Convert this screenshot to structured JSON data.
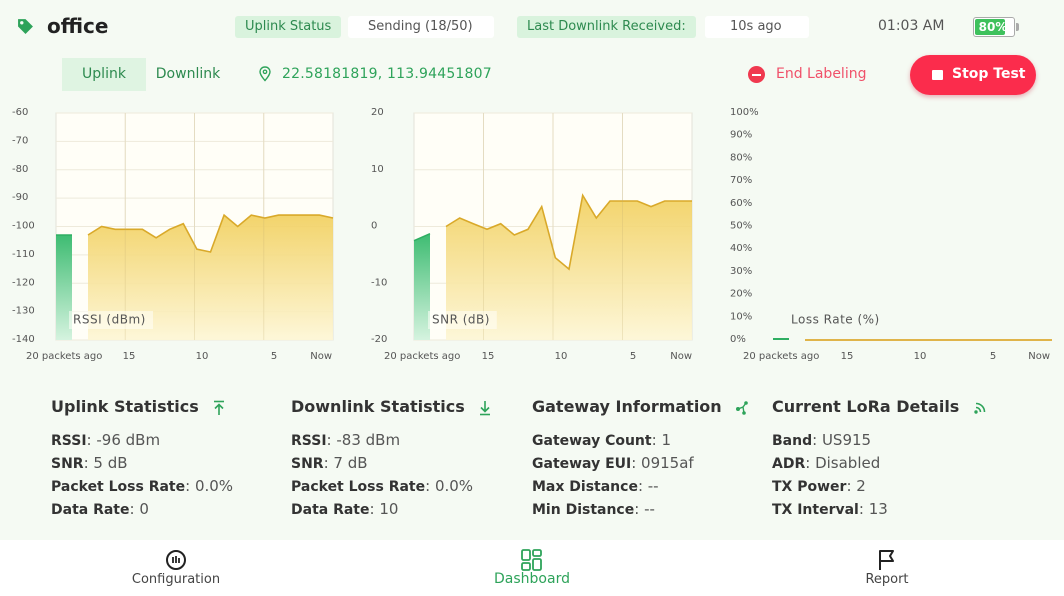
{
  "header": {
    "site_name": "office",
    "uplink_status_label": "Uplink Status",
    "uplink_status_value": "Sending (18/50)",
    "last_downlink_label": "Last Downlink Received:",
    "last_downlink_value": "10s ago",
    "clock": "01:03 AM",
    "battery_percent": 80,
    "battery_label": "80%",
    "tag_icon": "tag-icon"
  },
  "toolbar": {
    "tabs": [
      {
        "label": "Uplink",
        "active": true
      },
      {
        "label": "Downlink",
        "active": false
      }
    ],
    "pin_icon": "location-pin-icon",
    "coordinates": "22.58181819, 113.94451807",
    "end_labeling": "End Labeling",
    "stop_test": "Stop Test"
  },
  "colors": {
    "accent_green": "#2ea35a",
    "stop_red": "#fb2c4c",
    "series_fill": "#f3d77a",
    "series_line": "#d9a92a",
    "current_bar": "#3ec17a"
  },
  "chart_data": [
    {
      "type": "area",
      "label": "RSSI (dBm)",
      "ylim": [
        -140,
        -60
      ],
      "yticks": [
        "-60",
        "-70",
        "-80",
        "-90",
        "-100",
        "-110",
        "-120",
        "-130",
        "-140"
      ],
      "xticks": [
        "20 packets ago",
        "15",
        "10",
        "5",
        "Now"
      ],
      "x": [
        -18,
        -17,
        -16,
        -15,
        -14,
        -13,
        -12,
        -11,
        -10,
        -9,
        -8,
        -7,
        -6,
        -5,
        -4,
        -3,
        -2,
        -1,
        0
      ],
      "values": [
        -103,
        -100,
        -101,
        -101,
        -101,
        -104,
        -101,
        -99,
        -108,
        -109,
        -96,
        -100,
        -96,
        -97,
        -96,
        -96,
        -96,
        -96,
        -97
      ],
      "current_value": -103,
      "grid": true
    },
    {
      "type": "area",
      "label": "SNR (dB)",
      "ylim": [
        -20,
        20
      ],
      "yticks": [
        "20",
        "10",
        "0",
        "-10",
        "-20"
      ],
      "xticks": [
        "20 packets ago",
        "15",
        "10",
        "5",
        "Now"
      ],
      "x": [
        -18,
        -17,
        -16,
        -15,
        -14,
        -13,
        -12,
        -11,
        -10,
        -9,
        -8,
        -7,
        -6,
        -5,
        -4,
        -3,
        -2,
        -1,
        0
      ],
      "values": [
        0,
        1.5,
        0.5,
        -0.5,
        0.5,
        -1.5,
        -0.5,
        3.5,
        -5.5,
        -7.5,
        5.5,
        1.5,
        4.5,
        4.5,
        4.5,
        3.5,
        4.5,
        4.5,
        4.5
      ],
      "current_value": -2.5,
      "grid": true
    },
    {
      "type": "line",
      "label": "Loss Rate (%)",
      "ylim": [
        0,
        100
      ],
      "yticks": [
        "100%",
        "90%",
        "80%",
        "70%",
        "60%",
        "50%",
        "40%",
        "30%",
        "20%",
        "10%",
        "0%"
      ],
      "xticks": [
        "20 packets ago",
        "15",
        "10",
        "5",
        "Now"
      ],
      "x": [
        -18,
        -17,
        -16,
        -15,
        -14,
        -13,
        -12,
        -11,
        -10,
        -9,
        -8,
        -7,
        -6,
        -5,
        -4,
        -3,
        -2,
        -1,
        0
      ],
      "values": [
        0,
        0,
        0,
        0,
        0,
        0,
        0,
        0,
        0,
        0,
        0,
        0,
        0,
        0,
        0,
        0,
        0,
        0,
        0
      ],
      "current_value": 0,
      "grid": true
    }
  ],
  "stats": [
    {
      "title": "Uplink Statistics",
      "icon": "upload-arrow-icon",
      "rows": [
        {
          "key": "RSSI",
          "value": "-96 dBm"
        },
        {
          "key": "SNR",
          "value": "5 dB"
        },
        {
          "key": "Packet Loss Rate",
          "value": "0.0%"
        },
        {
          "key": "Data Rate",
          "value": "0"
        }
      ]
    },
    {
      "title": "Downlink Statistics",
      "icon": "download-arrow-icon",
      "rows": [
        {
          "key": "RSSI",
          "value": "-83 dBm"
        },
        {
          "key": "SNR",
          "value": "7 dB"
        },
        {
          "key": "Packet Loss Rate",
          "value": "0.0%"
        },
        {
          "key": "Data Rate",
          "value": "10"
        }
      ]
    },
    {
      "title": "Gateway Information",
      "icon": "network-nodes-icon",
      "rows": [
        {
          "key": "Gateway Count",
          "value": "1"
        },
        {
          "key": "Gateway EUI",
          "value": "0915af"
        },
        {
          "key": "Max Distance",
          "value": "--"
        },
        {
          "key": "Min Distance",
          "value": "--"
        }
      ]
    },
    {
      "title": "Current LoRa Details",
      "icon": "wireless-signal-icon",
      "rows": [
        {
          "key": "Band",
          "value": "US915"
        },
        {
          "key": "ADR",
          "value": "Disabled"
        },
        {
          "key": "TX Power",
          "value": "2"
        },
        {
          "key": "TX Interval",
          "value": "13"
        }
      ]
    }
  ],
  "bottom_nav": [
    {
      "label": "Configuration",
      "icon": "gauge-icon",
      "active": false
    },
    {
      "label": "Dashboard",
      "icon": "dashboard-grid-icon",
      "active": true
    },
    {
      "label": "Report",
      "icon": "flag-icon",
      "active": false
    }
  ]
}
